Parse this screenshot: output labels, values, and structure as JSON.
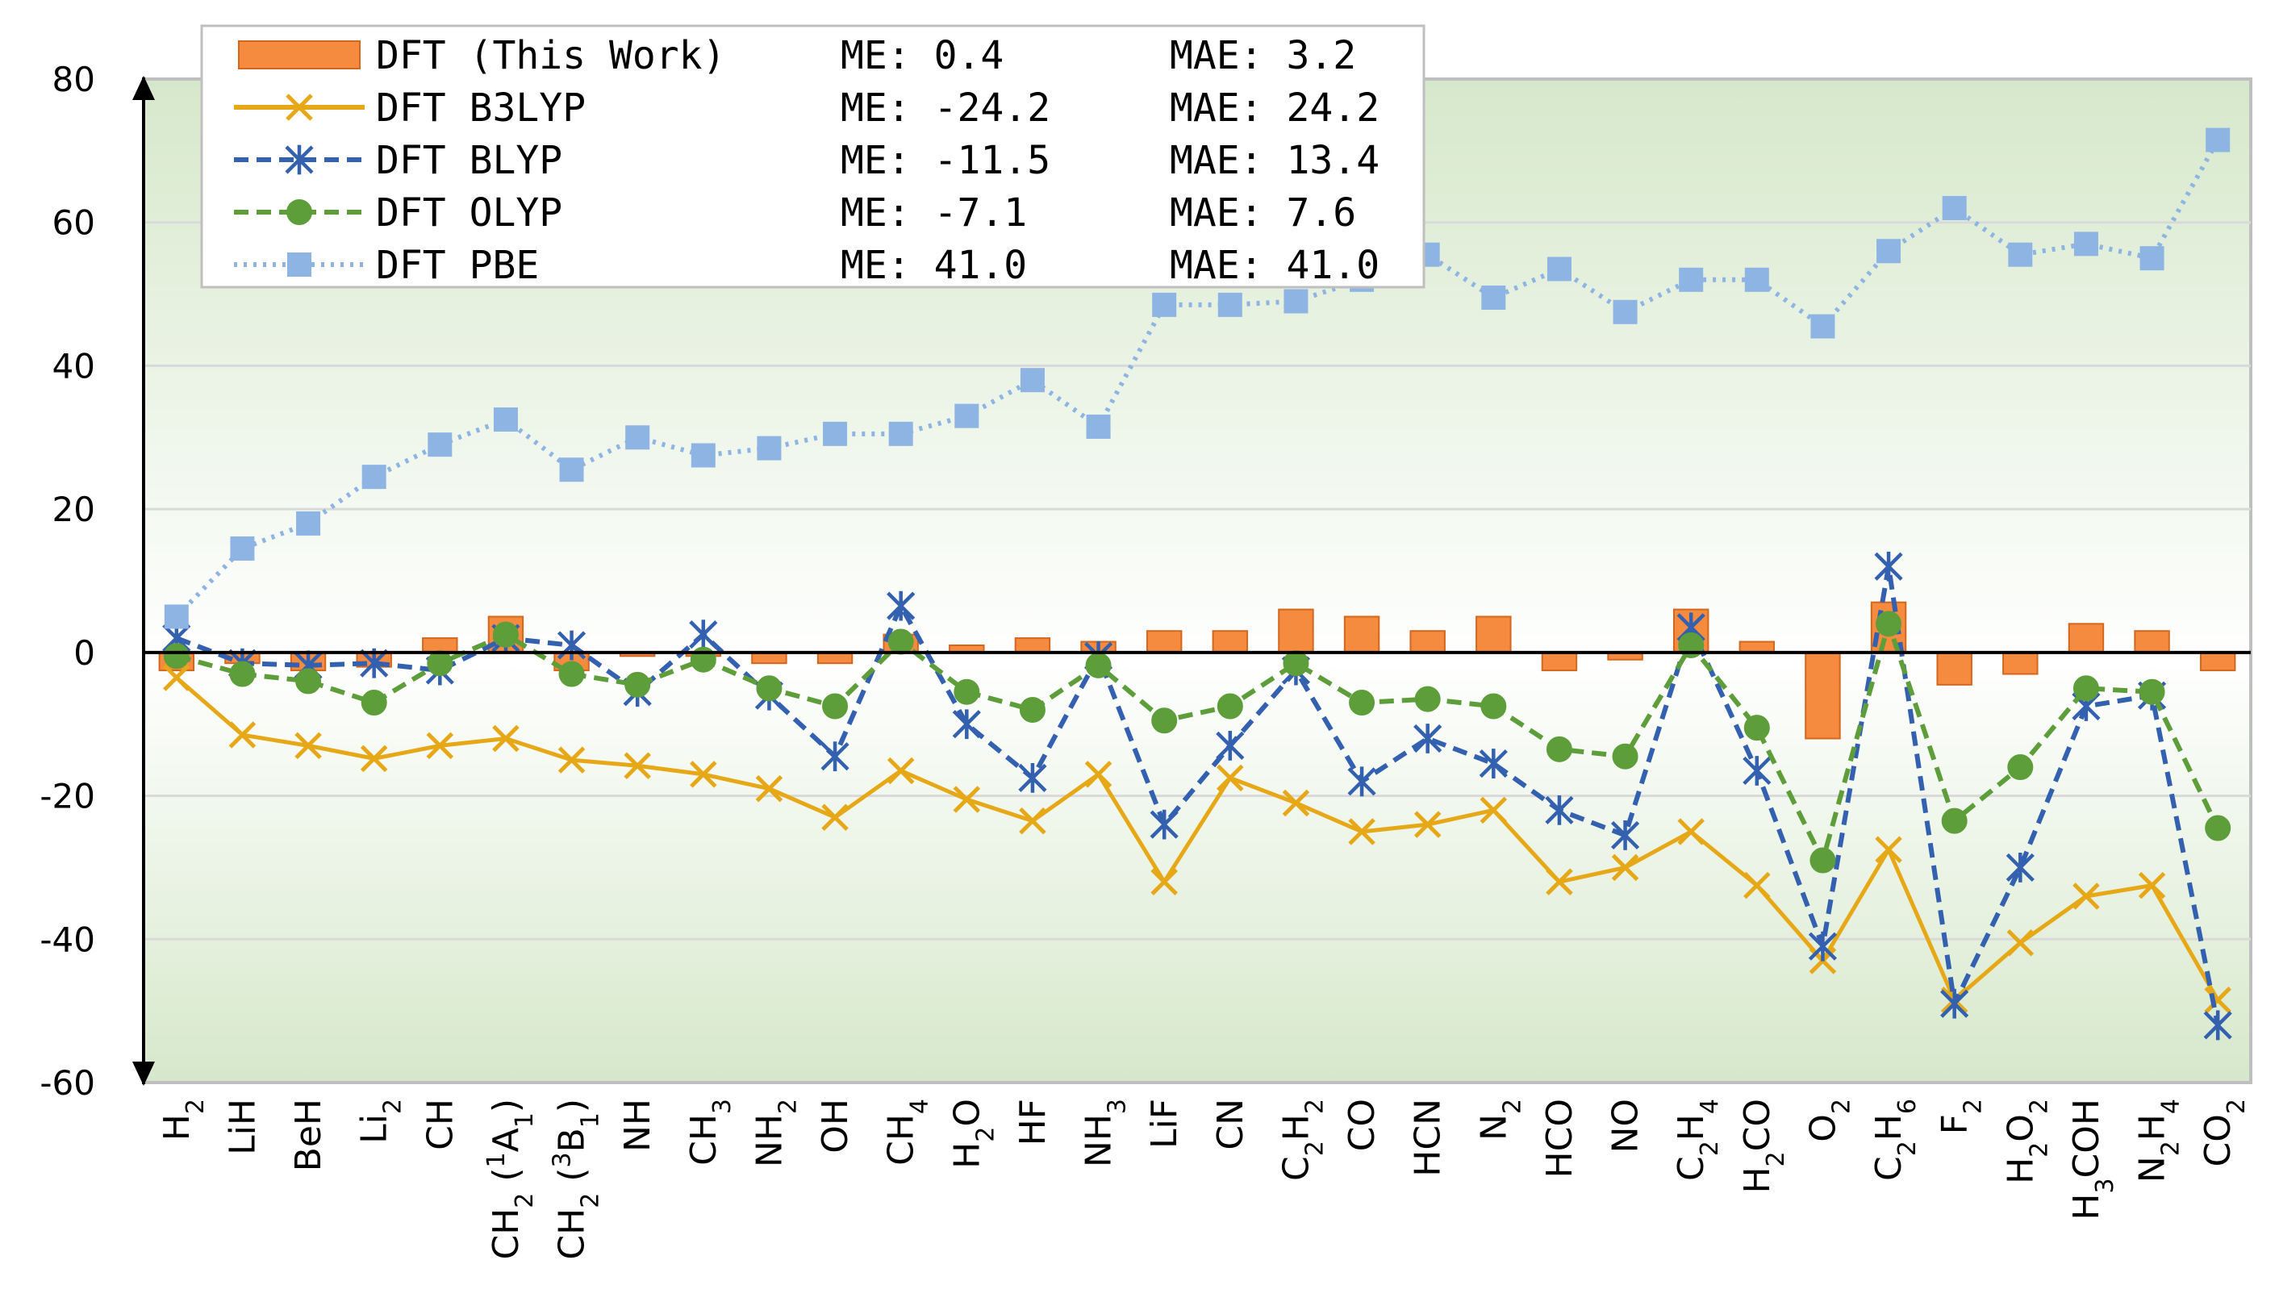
{
  "chart_data": {
    "type": "bar+line",
    "ylim": [
      -60,
      80
    ],
    "yticks": [
      "80",
      "60",
      "40",
      "20",
      "0",
      "-20",
      "-40",
      "-60"
    ],
    "ytick_values": [
      80,
      60,
      40,
      20,
      0,
      -20,
      -40,
      -60
    ],
    "categories": [
      {
        "base": "H",
        "sub": "2"
      },
      {
        "base": "LiH"
      },
      {
        "base": "BeH"
      },
      {
        "base": "Li",
        "sub": "2"
      },
      {
        "base": "CH"
      },
      {
        "base": "CH",
        "sub": "2",
        "tail": " (",
        "sup2": "1",
        "base2": "A",
        "sub2": "1",
        "tail2": ")"
      },
      {
        "base": "CH",
        "sub": "2",
        "tail": " (",
        "sup2": "3",
        "base2": "B",
        "sub2": "1",
        "tail2": ")"
      },
      {
        "base": "NH"
      },
      {
        "base": "CH",
        "sub": "3"
      },
      {
        "base": "NH",
        "sub": "2"
      },
      {
        "base": "OH"
      },
      {
        "base": "CH",
        "sub": "4"
      },
      {
        "base": "H",
        "sub": "2",
        "tail": "O"
      },
      {
        "base": "HF"
      },
      {
        "base": "NH",
        "sub": "3"
      },
      {
        "base": "LiF"
      },
      {
        "base": "CN"
      },
      {
        "base": "C",
        "sub": "2",
        "tail": "H",
        "sub3": "2"
      },
      {
        "base": "CO"
      },
      {
        "base": "HCN"
      },
      {
        "base": "N",
        "sub": "2"
      },
      {
        "base": "HCO"
      },
      {
        "base": "NO"
      },
      {
        "base": "C",
        "sub": "2",
        "tail": "H",
        "sub3": "4"
      },
      {
        "base": "H",
        "sub": "2",
        "tail": "CO"
      },
      {
        "base": "O",
        "sub": "2"
      },
      {
        "base": "C",
        "sub": "2",
        "tail": "H",
        "sub3": "6"
      },
      {
        "base": "F",
        "sub": "2"
      },
      {
        "base": "H",
        "sub": "2",
        "tail": "O",
        "sub3": "2"
      },
      {
        "base": "H",
        "sub": "3",
        "tail": "COH"
      },
      {
        "base": "N",
        "sub": "2",
        "tail": "H",
        "sub3": "4"
      },
      {
        "base": "CO",
        "sub": "2"
      }
    ],
    "series": [
      {
        "name": "DFT (This Work)",
        "kind": "bar",
        "color": "#F58B3E",
        "edge": "#D4661E",
        "me": "ME:   0.4",
        "mae": "MAE:  3.2",
        "values": [
          -2.5,
          -1.5,
          -2.5,
          -2.0,
          2.0,
          5.0,
          -2.5,
          -0.5,
          -0.5,
          -1.5,
          -1.5,
          2.5,
          1.0,
          2.0,
          1.5,
          3.0,
          3.0,
          6.0,
          5.0,
          3.0,
          5.0,
          -2.5,
          -1.0,
          6.0,
          1.5,
          -12.0,
          7.0,
          -4.5,
          -3.0,
          4.0,
          3.0,
          -2.5
        ]
      },
      {
        "name": "DFT B3LYP",
        "kind": "line",
        "marker": "x",
        "dash": "",
        "color": "#E6A817",
        "me": "ME: -24.2",
        "mae": "MAE: 24.2",
        "values": [
          -3.5,
          -11.5,
          -13.0,
          -14.8,
          -13.0,
          -12.0,
          -15.0,
          -15.8,
          -17.0,
          -19.0,
          -23.0,
          -16.5,
          -20.5,
          -23.5,
          -17.0,
          -32.0,
          -17.5,
          -21.0,
          -25.0,
          -24.0,
          -22.0,
          -32.0,
          -30.0,
          -25.0,
          -32.5,
          -43.0,
          -27.5,
          -48.5,
          -40.5,
          -34.0,
          -32.5,
          -48.5
        ]
      },
      {
        "name": "DFT BLYP",
        "kind": "line",
        "marker": "asterisk",
        "dash": "18 10",
        "color": "#3361B0",
        "me": "ME: -11.5",
        "mae": "MAE: 13.4",
        "values": [
          2.0,
          -1.5,
          -1.8,
          -1.5,
          -2.5,
          2.0,
          1.0,
          -5.5,
          2.5,
          -6.0,
          -14.5,
          6.5,
          -10.0,
          -17.5,
          -0.5,
          -24.0,
          -13.0,
          -2.5,
          -18.0,
          -12.0,
          -15.5,
          -22.0,
          -25.5,
          3.5,
          -16.5,
          -41.0,
          12.0,
          -49.0,
          -30.0,
          -7.5,
          -6.0,
          -52.0
        ]
      },
      {
        "name": "DFT OLYP",
        "kind": "line",
        "marker": "circle",
        "dash": "18 10",
        "color": "#5E9E3A",
        "me": "ME:  -7.1",
        "mae": "MAE:  7.6",
        "values": [
          -0.5,
          -3.0,
          -4.0,
          -7.0,
          -1.5,
          2.5,
          -3.0,
          -4.5,
          -1.0,
          -5.0,
          -7.5,
          1.5,
          -5.5,
          -8.0,
          -1.8,
          -9.5,
          -7.5,
          -1.5,
          -7.0,
          -6.5,
          -7.5,
          -13.5,
          -14.5,
          1.0,
          -10.5,
          -29.0,
          4.0,
          -23.5,
          -16.0,
          -5.0,
          -5.5,
          -24.5
        ]
      },
      {
        "name": "DFT PBE",
        "kind": "line",
        "marker": "square",
        "dash": "4 8",
        "color": "#8DB4E2",
        "me": "ME:  41.0",
        "mae": "MAE: 41.0",
        "values": [
          5.0,
          14.5,
          18.0,
          24.5,
          29.0,
          32.5,
          25.5,
          30.0,
          27.5,
          28.5,
          30.5,
          30.5,
          33.0,
          38.0,
          31.5,
          48.5,
          48.5,
          49.0,
          52.0,
          55.5,
          49.5,
          53.5,
          47.5,
          52.0,
          52.0,
          45.5,
          56.0,
          62.0,
          55.5,
          57.0,
          55.0,
          71.5
        ]
      }
    ]
  }
}
